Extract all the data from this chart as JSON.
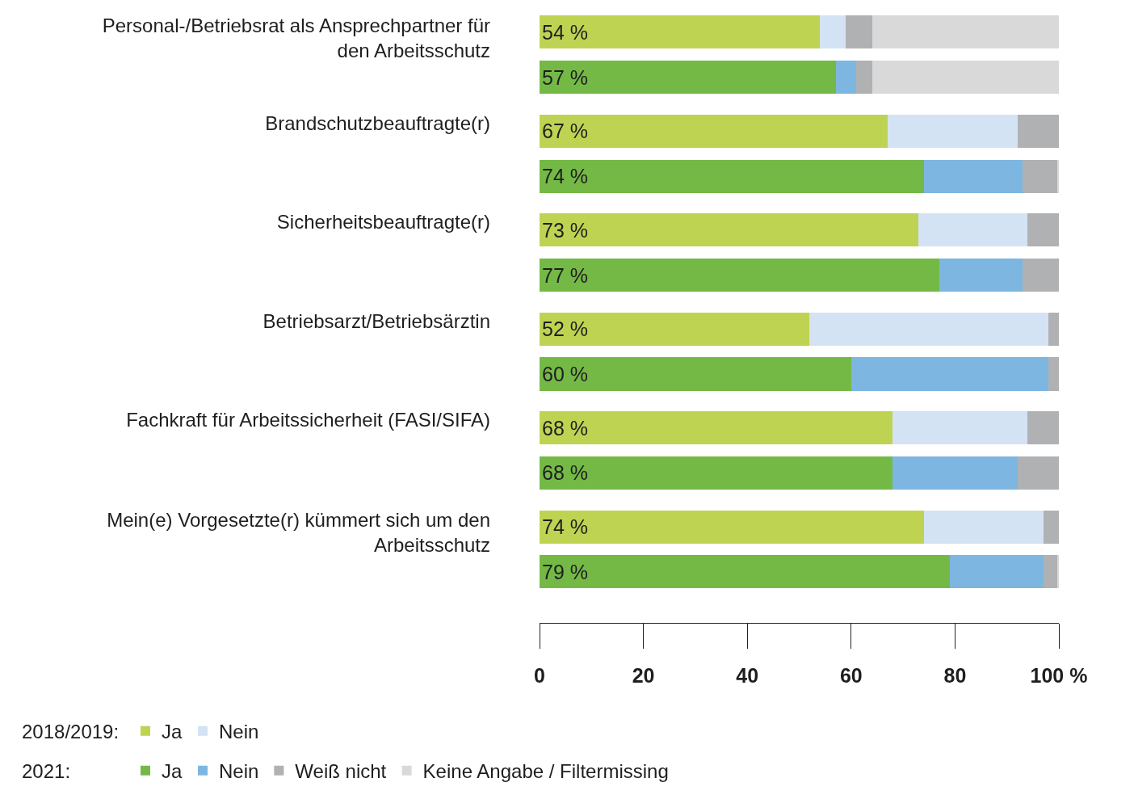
{
  "chart_data": {
    "type": "bar",
    "orientation": "horizontal",
    "stacked": true,
    "categories": [
      "Personal-/Betriebsrat als Ansprechpartner für den Arbeitsschutz",
      null,
      "Brandschutzbeauftragte(r)",
      null,
      "Sicherheitsbeauftragte(r)",
      null,
      "Betriebsarzt/Betriebsärztin",
      null,
      "Fachkraft für Arbeitssicherheit (FASI/SIFA)",
      null,
      "Mein(e) Vorgesetzte(r) kümmert sich um den Arbeitsschutz",
      null
    ],
    "series": [
      {
        "name": "Ja",
        "color": "#bfd353",
        "values": [
          54,
          null,
          67,
          null,
          73,
          null,
          52,
          null,
          68,
          null,
          74,
          null
        ],
        "value_labels": [
          "54 %",
          null,
          "67 %",
          null,
          "73 %",
          null,
          "52 %",
          null,
          "68 %",
          null,
          "74 %",
          null
        ]
      },
      {
        "name": "Nein",
        "color": "#d3e3f4",
        "values": [
          5,
          null,
          25,
          null,
          21,
          null,
          46,
          null,
          26,
          null,
          23,
          null
        ]
      },
      {
        "name": "Ja",
        "color": "#74b946",
        "values": [
          null,
          57,
          null,
          74,
          null,
          77,
          null,
          60,
          null,
          68,
          null,
          79
        ],
        "value_labels": [
          null,
          "57 %",
          null,
          "74 %",
          null,
          "77 %",
          null,
          "60 %",
          null,
          "68 %",
          null,
          "79 %"
        ]
      },
      {
        "name": "Nein",
        "color": "#7db6e1",
        "values": [
          null,
          4,
          null,
          19,
          null,
          16,
          null,
          38,
          null,
          24,
          null,
          18
        ]
      },
      {
        "name": "Weiß nicht",
        "color": "#b0b1b3",
        "values": [
          5,
          3,
          8,
          6.7,
          6,
          7,
          2,
          2,
          6,
          8,
          3,
          2.7
        ]
      },
      {
        "name": "Keine Angabe / Filtermissing",
        "color": "#d9d9d9",
        "values": [
          36,
          36,
          null,
          0.3,
          null,
          null,
          null,
          null,
          null,
          null,
          null,
          0.3
        ]
      }
    ],
    "xlim": [
      0,
      100
    ],
    "xticks": [
      0,
      20,
      40,
      60,
      80,
      {
        "value": 100,
        "label": "100 %"
      }
    ],
    "legend": "bottom left",
    "annotations": [
      "2018/2019:",
      "2021:"
    ]
  }
}
